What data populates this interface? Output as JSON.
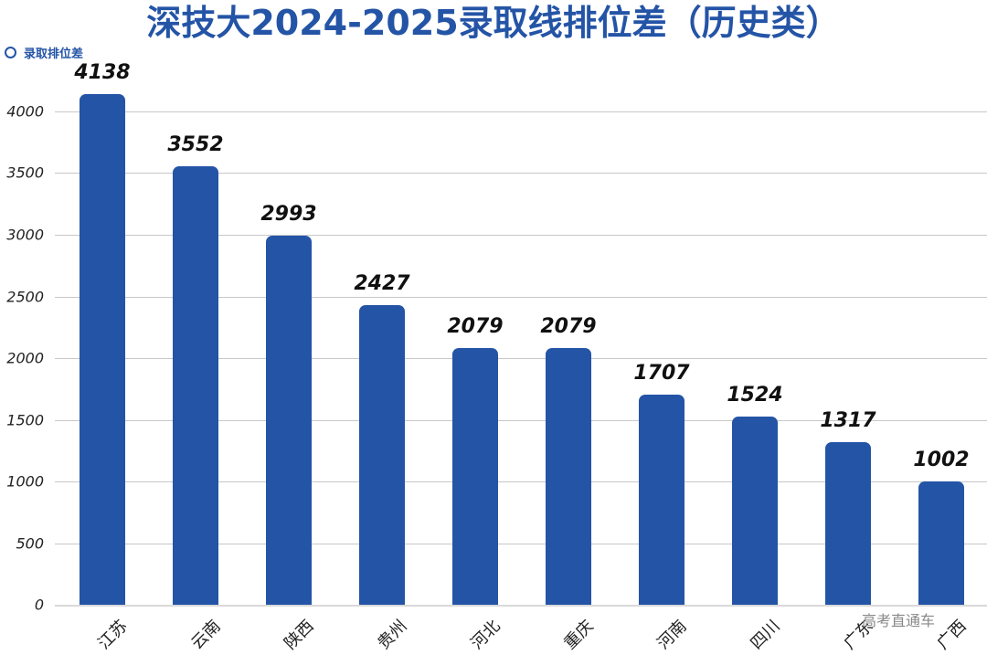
{
  "header": {
    "title": "深技大2024-2025录取线排位差（历史类）",
    "legend_label": "录取排位差"
  },
  "watermark": "高考直通车",
  "colors": {
    "bar": "#2454a6",
    "title": "#2454a6",
    "grid": "#c8c8c8"
  },
  "chart_data": {
    "type": "bar",
    "title": "深技大2024-2025录取线排位差（历史类）",
    "xlabel": "",
    "ylabel": "",
    "legend": [
      "录取排位差"
    ],
    "legend_position": "top-left",
    "grid": true,
    "ylim": [
      0,
      4000
    ],
    "yticks": [
      0,
      500,
      1000,
      1500,
      2000,
      2500,
      3000,
      3500,
      4000
    ],
    "categories": [
      "江苏",
      "云南",
      "陕西",
      "贵州",
      "河北",
      "重庆",
      "河南",
      "四川",
      "广东",
      "广西"
    ],
    "values": [
      4138,
      3552,
      2993,
      2427,
      2079,
      2079,
      1707,
      1524,
      1317,
      1002
    ],
    "series": [
      {
        "name": "录取排位差",
        "values": [
          4138,
          3552,
          2993,
          2427,
          2079,
          2079,
          1707,
          1524,
          1317,
          1002
        ]
      }
    ]
  }
}
